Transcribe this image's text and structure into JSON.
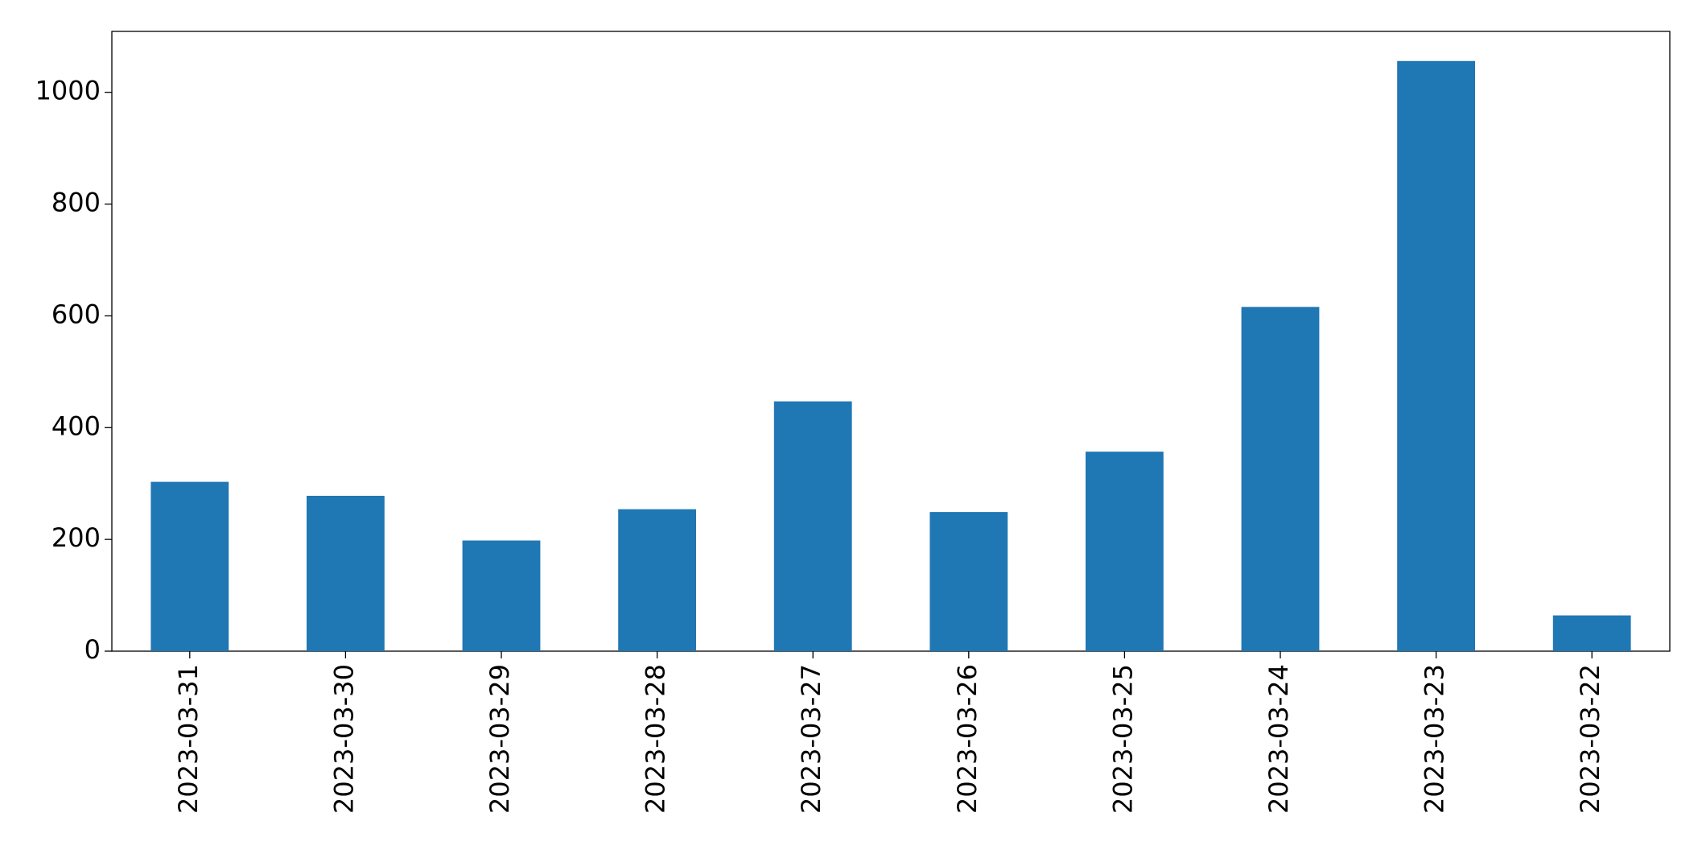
{
  "chart_data": {
    "type": "bar",
    "categories": [
      "2023-03-31",
      "2023-03-30",
      "2023-03-29",
      "2023-03-28",
      "2023-03-27",
      "2023-03-26",
      "2023-03-25",
      "2023-03-24",
      "2023-03-23",
      "2023-03-22"
    ],
    "values": [
      303,
      278,
      198,
      254,
      447,
      249,
      357,
      616,
      1056,
      64
    ],
    "color": "#1f77b4",
    "ylim": [
      0,
      1109
    ],
    "yticks": [
      0,
      200,
      400,
      600,
      800,
      1000
    ],
    "grid": false
  }
}
